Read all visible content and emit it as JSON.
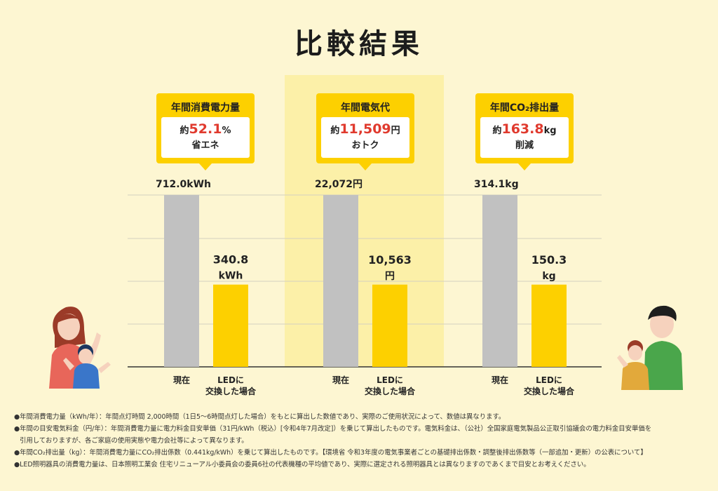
{
  "title": "比較結果",
  "callouts": [
    {
      "title": "年間消費電力量",
      "prefix": "約",
      "value": "52.1",
      "unit": "%",
      "desc": "省エネ"
    },
    {
      "title": "年間電気代",
      "prefix": "約",
      "value": "11,509",
      "unit": "円",
      "desc": "おトク"
    },
    {
      "title": "年間CO₂排出量",
      "prefix": "約",
      "value": "163.8",
      "unit": "kg",
      "desc": "削減"
    }
  ],
  "chart_data": [
    {
      "type": "bar",
      "categories": [
        "現在",
        "LEDに交換した場合"
      ],
      "values": [
        712.0,
        340.8
      ],
      "value_labels": [
        "712.0kWh",
        "340.8|kWh"
      ],
      "unit": "kWh",
      "ylim": [
        0,
        712.0
      ]
    },
    {
      "type": "bar",
      "categories": [
        "現在",
        "LEDに交換した場合"
      ],
      "values": [
        22072,
        10563
      ],
      "value_labels": [
        "22,072円",
        "10,563|円"
      ],
      "unit": "円",
      "ylim": [
        0,
        22072
      ]
    },
    {
      "type": "bar",
      "categories": [
        "現在",
        "LEDに交換した場合"
      ],
      "values": [
        314.1,
        150.3
      ],
      "value_labels": [
        "314.1kg",
        "150.3|kg"
      ],
      "unit": "kg",
      "ylim": [
        0,
        314.1
      ]
    }
  ],
  "category_labels": {
    "current": "現在",
    "led_line1": "LEDに",
    "led_line2": "交換した場合"
  },
  "colors": {
    "current": "#c1c1c1",
    "led": "#fdd000",
    "accent": "#e03a2e",
    "background": "#fdf6d2",
    "highlight": "#fcf0a8"
  },
  "footnotes": [
    "●年間消費電力量（kWh/年）：年間点灯時間 2,000時間（1日5〜6時間点灯した場合）をもとに算出した数値であり、実際のご使用状況によって、数値は異なります。",
    "●年間の目安電気料金（円/年）：年間消費電力量に電力料金目安単価（31円/kWh（税込）[令和4年7月改定]）を乗じて算出したものです。電気料金は、（公社）全国家庭電気製品公正取引協議会の電力料金目安単価を",
    "引用しておりますが、各ご家庭の使用実態や電力会社等によって異なります。",
    "●年間CO₂排出量（kg）：年間消費電力量にCO₂排出係数（0.441kg/kWh）を乗じて算出したものです。【環境省 令和3年度の電気事業者ごとの基礎排出係数・調整後排出係数等（一部追加・更新）の公表について】",
    "●LED照明器具の消費電力量は、日本照明工業会 住宅リニューアル小委員会の委員6社の代表機種の平均値であり、実際に選定される照明器具とは異なりますのであくまで目安とお考えください。"
  ]
}
